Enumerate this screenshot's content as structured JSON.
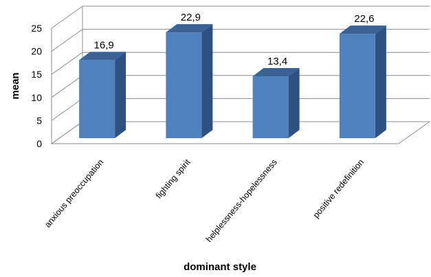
{
  "chart_data": {
    "type": "bar",
    "categories": [
      "anxious preoccupation",
      "fighting spirit",
      "helplessness-hopelessness",
      "positive redefinition"
    ],
    "values": [
      16.9,
      22.9,
      13.4,
      22.6
    ],
    "data_labels": [
      "16,9",
      "22,9",
      "13,4",
      "22,6"
    ],
    "xlabel": "dominant style",
    "ylabel": "mean",
    "ylim": [
      0,
      25
    ],
    "yticks": [
      0,
      5,
      10,
      15,
      20,
      25
    ],
    "grid": true,
    "style": "3d-column",
    "colors": {
      "front": "#4f81bd",
      "side": "#2f5181",
      "top": "#3b6293"
    }
  }
}
